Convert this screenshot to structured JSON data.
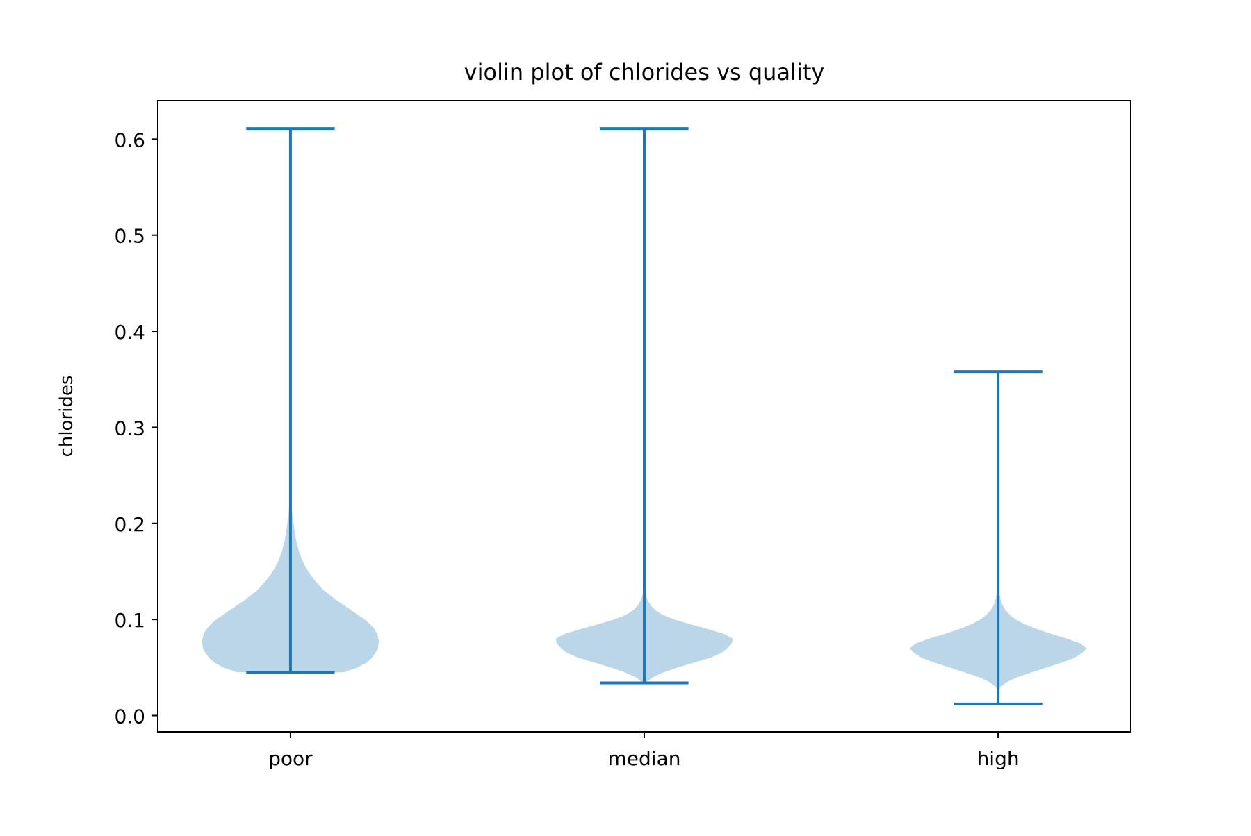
{
  "chart_data": {
    "type": "violin",
    "title": "violin plot of chlorides vs quality",
    "xlabel": "",
    "ylabel": "chlorides",
    "categories": [
      "poor",
      "median",
      "high"
    ],
    "ylim": [
      -0.017,
      0.64
    ],
    "yticks": [
      0.0,
      0.1,
      0.2,
      0.3,
      0.4,
      0.5,
      0.6
    ],
    "ytick_labels": [
      "0.0",
      "0.1",
      "0.2",
      "0.3",
      "0.4",
      "0.5",
      "0.6"
    ],
    "grid": false,
    "legend": "none",
    "colors": {
      "line": "#1f77b4",
      "body": "#1f77b4",
      "text": "#000000",
      "axis": "#000000"
    },
    "series": [
      {
        "category": "poor",
        "min": 0.045,
        "max": 0.611,
        "density": [
          [
            0.045,
            0.6
          ],
          [
            0.05,
            0.76
          ],
          [
            0.055,
            0.86
          ],
          [
            0.06,
            0.92
          ],
          [
            0.065,
            0.96
          ],
          [
            0.07,
            0.99
          ],
          [
            0.078,
            1.0
          ],
          [
            0.085,
            0.98
          ],
          [
            0.09,
            0.95
          ],
          [
            0.095,
            0.9
          ],
          [
            0.1,
            0.84
          ],
          [
            0.105,
            0.76
          ],
          [
            0.11,
            0.68
          ],
          [
            0.115,
            0.6
          ],
          [
            0.12,
            0.52
          ],
          [
            0.125,
            0.45
          ],
          [
            0.13,
            0.38
          ],
          [
            0.14,
            0.28
          ],
          [
            0.15,
            0.2
          ],
          [
            0.16,
            0.14
          ],
          [
            0.17,
            0.1
          ],
          [
            0.18,
            0.07
          ],
          [
            0.19,
            0.05
          ],
          [
            0.2,
            0.035
          ],
          [
            0.21,
            0.02
          ],
          [
            0.225,
            0.01
          ],
          [
            0.24,
            0.004
          ],
          [
            0.26,
            0.0
          ]
        ]
      },
      {
        "category": "median",
        "min": 0.034,
        "max": 0.611,
        "density": [
          [
            0.034,
            0.0
          ],
          [
            0.036,
            0.04
          ],
          [
            0.04,
            0.1
          ],
          [
            0.045,
            0.22
          ],
          [
            0.05,
            0.38
          ],
          [
            0.055,
            0.56
          ],
          [
            0.06,
            0.74
          ],
          [
            0.065,
            0.87
          ],
          [
            0.07,
            0.94
          ],
          [
            0.075,
            0.99
          ],
          [
            0.08,
            1.0
          ],
          [
            0.085,
            0.9
          ],
          [
            0.09,
            0.72
          ],
          [
            0.095,
            0.52
          ],
          [
            0.1,
            0.34
          ],
          [
            0.105,
            0.2
          ],
          [
            0.11,
            0.12
          ],
          [
            0.115,
            0.07
          ],
          [
            0.12,
            0.04
          ],
          [
            0.125,
            0.02
          ],
          [
            0.13,
            0.01
          ],
          [
            0.135,
            0.004
          ],
          [
            0.14,
            0.0
          ]
        ]
      },
      {
        "category": "high",
        "min": 0.012,
        "max": 0.358,
        "density": [
          [
            0.025,
            0.0
          ],
          [
            0.03,
            0.03
          ],
          [
            0.035,
            0.1
          ],
          [
            0.04,
            0.22
          ],
          [
            0.045,
            0.38
          ],
          [
            0.05,
            0.55
          ],
          [
            0.055,
            0.72
          ],
          [
            0.06,
            0.86
          ],
          [
            0.065,
            0.95
          ],
          [
            0.07,
            1.0
          ],
          [
            0.075,
            0.93
          ],
          [
            0.08,
            0.78
          ],
          [
            0.085,
            0.6
          ],
          [
            0.09,
            0.44
          ],
          [
            0.095,
            0.3
          ],
          [
            0.1,
            0.2
          ],
          [
            0.105,
            0.13
          ],
          [
            0.11,
            0.08
          ],
          [
            0.115,
            0.05
          ],
          [
            0.12,
            0.03
          ],
          [
            0.125,
            0.02
          ],
          [
            0.13,
            0.01
          ],
          [
            0.135,
            0.004
          ],
          [
            0.14,
            0.0
          ]
        ]
      }
    ]
  }
}
